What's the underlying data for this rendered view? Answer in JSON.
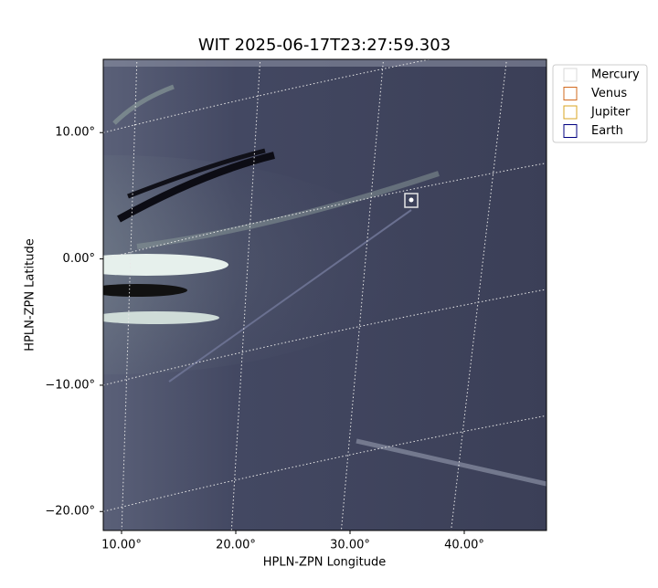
{
  "chart_data": {
    "type": "image",
    "title": "WIT 2025-06-17T23:27:59.303",
    "xlabel": "HPLN-ZPN Longitude",
    "ylabel": "HPLN-ZPN Latitude",
    "xlim": [
      8.4,
      47.2
    ],
    "ylim": [
      -21.5,
      15.8
    ],
    "xticks": [
      {
        "value": 10,
        "label": "10.00°"
      },
      {
        "value": 20,
        "label": "20.00°"
      },
      {
        "value": 30,
        "label": "30.00°"
      },
      {
        "value": 40,
        "label": "40.00°"
      }
    ],
    "yticks": [
      {
        "value": -20,
        "label": "−20.00°"
      },
      {
        "value": -10,
        "label": "−10.00°"
      },
      {
        "value": 0,
        "label": "0.00°"
      },
      {
        "value": 10,
        "label": "10.00°"
      }
    ],
    "grid": true,
    "legend": "upper right",
    "series": [
      {
        "name": "Mercury",
        "color": "#d8d8d8"
      },
      {
        "name": "Venus",
        "color": "#d2691e"
      },
      {
        "name": "Jupiter",
        "color": "#daa520"
      },
      {
        "name": "Earth",
        "color": "#000080"
      }
    ]
  }
}
